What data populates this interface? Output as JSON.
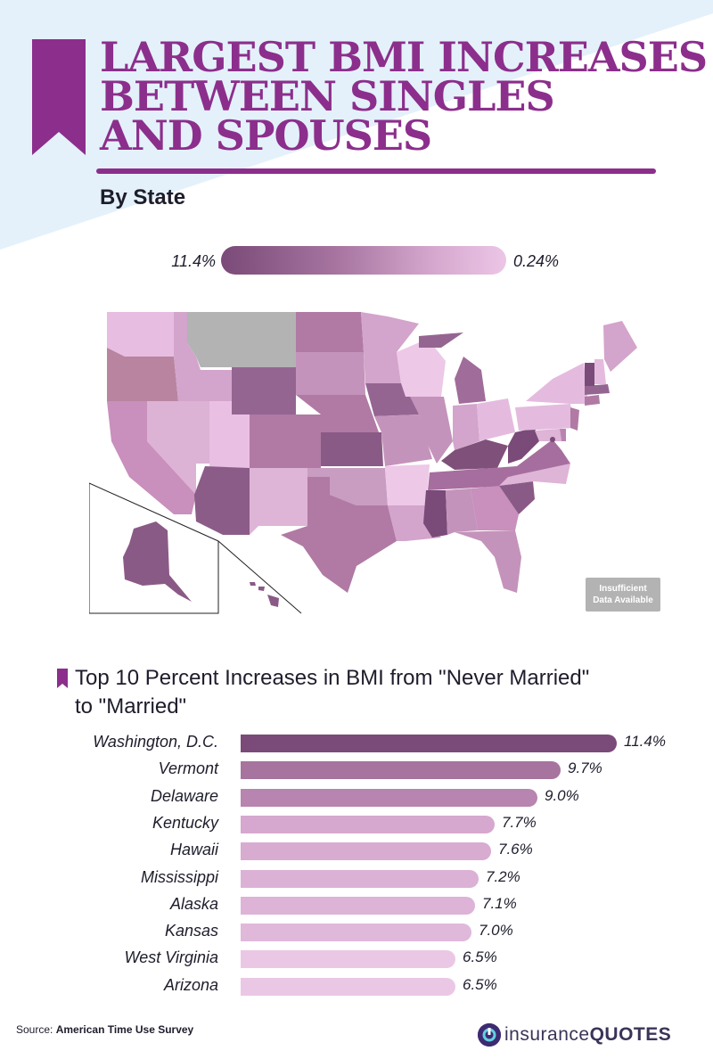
{
  "header": {
    "title_lines": [
      "LARGEST BMI INCREASES",
      "BETWEEN SINGLES",
      "AND SPOUSES"
    ],
    "subtitle": "By State"
  },
  "map_legend": {
    "high_label": "11.4%",
    "low_label": "0.24%",
    "high_color": "#7a4a78",
    "low_color": "#ecc6e6",
    "no_data_color": "#b3b3b3",
    "no_data_line1": "Insufficient",
    "no_data_line2": "Data Available"
  },
  "chart_data": {
    "type": "bar",
    "orientation": "horizontal",
    "title_line1": "Top 10 Percent Increases in BMI from \"Never Married\"",
    "title_line2": "to \"Married\"",
    "categories": [
      "Washington, D.C.",
      "Vermont",
      "Delaware",
      "Kentucky",
      "Hawaii",
      "Mississippi",
      "Alaska",
      "Kansas",
      "West Virginia",
      "Arizona"
    ],
    "values": [
      11.4,
      9.7,
      9.0,
      7.7,
      7.6,
      7.2,
      7.1,
      7.0,
      6.5,
      6.5
    ],
    "value_labels": [
      "11.4%",
      "9.7%",
      "9.0%",
      "7.7%",
      "7.6%",
      "7.2%",
      "7.1%",
      "7.0%",
      "6.5%",
      "6.5%"
    ],
    "xlim": [
      0,
      11.4
    ],
    "grid": false,
    "colors": [
      "#7a4a78",
      "#a6749f",
      "#b884b0",
      "#d6a8cf",
      "#d8abd1",
      "#dcb1d6",
      "#ddb3d7",
      "#e0b8da",
      "#ebc7e6",
      "#ebc7e6"
    ]
  },
  "footer": {
    "source_prefix": "Source:",
    "source_name": "American Time Use Survey",
    "brand_light": "insurance",
    "brand_bold": "QUOTES"
  }
}
